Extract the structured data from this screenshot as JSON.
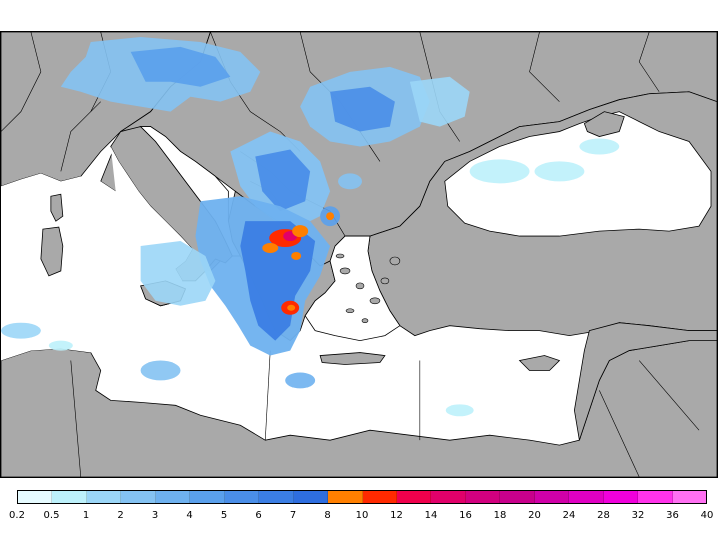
{
  "map": {
    "land_color": "#a9a9a9",
    "sea_color": "#ffffff",
    "border_color": "#000000"
  },
  "legend": {
    "labels": [
      "0.2",
      "0.5",
      "1",
      "2",
      "3",
      "4",
      "5",
      "6",
      "7",
      "8",
      "10",
      "12",
      "14",
      "16",
      "18",
      "20",
      "24",
      "28",
      "32",
      "36",
      "40"
    ],
    "colors": [
      "#e6fbff",
      "#bdf1fb",
      "#9bd6f7",
      "#84c2f2",
      "#6eb1ef",
      "#5aa0ec",
      "#4a8ee8",
      "#3b7ee4",
      "#2e6ee0",
      "#ff7f00",
      "#ff2a00",
      "#f0004c",
      "#e1006a",
      "#d2007f",
      "#c8008c",
      "#d000a8",
      "#e000c3",
      "#f000dc",
      "#ff33ea",
      "#ff70f2"
    ]
  }
}
